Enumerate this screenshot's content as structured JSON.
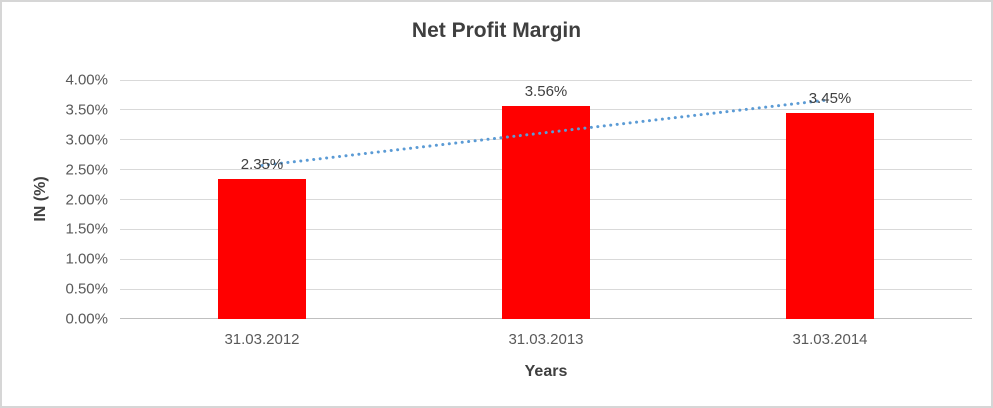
{
  "chart": {
    "title": "Net Profit Margin",
    "y_axis_title": "IN (%)",
    "x_axis_title": "Years",
    "colors": {
      "bar": "#ff0000",
      "trendline": "#5b9bd5",
      "gridline": "#d9d9d9",
      "axis_line": "#bfbfbf",
      "title_text": "#3f3f3f",
      "tick_text": "#595959",
      "data_label_text": "#404040",
      "frame_border": "#d6d6d6"
    }
  },
  "chart_data": {
    "type": "bar",
    "title": "Net Profit Margin",
    "xlabel": "Years",
    "ylabel": "IN (%)",
    "categories": [
      "31.03.2012",
      "31.03.2013",
      "31.03.2014"
    ],
    "values": [
      2.35,
      3.56,
      3.45
    ],
    "data_labels": [
      "2.35%",
      "3.56%",
      "3.45%"
    ],
    "y_ticks": [
      "0.00%",
      "0.50%",
      "1.00%",
      "1.50%",
      "2.00%",
      "2.50%",
      "3.00%",
      "3.50%",
      "4.00%"
    ],
    "ylim": [
      0,
      4.0
    ],
    "grid": true,
    "legend": "none",
    "bar_color": "#ff0000",
    "trendline": {
      "style": "dotted",
      "color": "#5b9bd5",
      "fit": "linear"
    }
  }
}
